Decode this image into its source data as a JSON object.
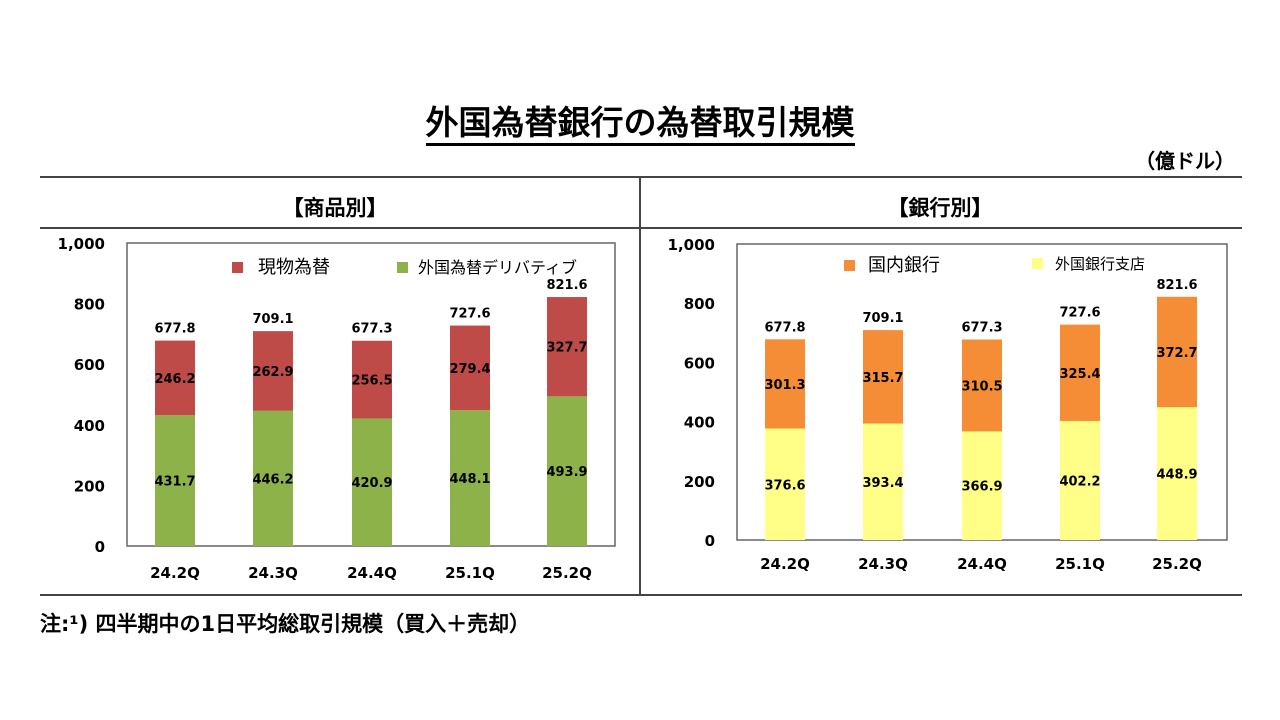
{
  "title": "外国為替銀行の為替取引規模",
  "unit": "（億ドル）",
  "note": "注:¹) 四半期中の1日平均総取引規模（買入＋売却）",
  "chart_data": [
    {
      "type": "bar",
      "stacked": true,
      "title": "【商品別】",
      "categories": [
        "24.2Q",
        "24.3Q",
        "24.4Q",
        "25.1Q",
        "25.2Q"
      ],
      "ylim": [
        0,
        1000
      ],
      "yticks": [
        "0",
        "200",
        "400",
        "600",
        "800",
        "1,000"
      ],
      "ytick_values": [
        0,
        200,
        400,
        600,
        800,
        1000
      ],
      "legend_position": "top",
      "series": [
        {
          "name": "外国為替デリバティブ",
          "color": "#8DB24A",
          "values": [
            431.7,
            446.2,
            420.9,
            448.1,
            493.9
          ]
        },
        {
          "name": "現物為替",
          "color": "#BE4B48",
          "values": [
            246.2,
            262.9,
            256.5,
            279.4,
            327.7
          ]
        }
      ],
      "totals": [
        "677.8",
        "709.1",
        "677.3",
        "727.6",
        "821.6"
      ]
    },
    {
      "type": "bar",
      "stacked": true,
      "title": "【銀行別】",
      "categories": [
        "24.2Q",
        "24.3Q",
        "24.4Q",
        "25.1Q",
        "25.2Q"
      ],
      "ylim": [
        0,
        1000
      ],
      "yticks": [
        "0",
        "200",
        "400",
        "600",
        "800",
        "1,000"
      ],
      "ytick_values": [
        0,
        200,
        400,
        600,
        800,
        1000
      ],
      "legend_position": "top",
      "series": [
        {
          "name": "外国銀行支店",
          "color": "#FFFF88",
          "values": [
            376.6,
            393.4,
            366.9,
            402.2,
            448.9
          ]
        },
        {
          "name": "国内銀行",
          "color": "#F58D37",
          "values": [
            301.3,
            315.7,
            310.5,
            325.4,
            372.7
          ]
        }
      ],
      "totals": [
        "677.8",
        "709.1",
        "677.3",
        "727.6",
        "821.6"
      ]
    }
  ]
}
